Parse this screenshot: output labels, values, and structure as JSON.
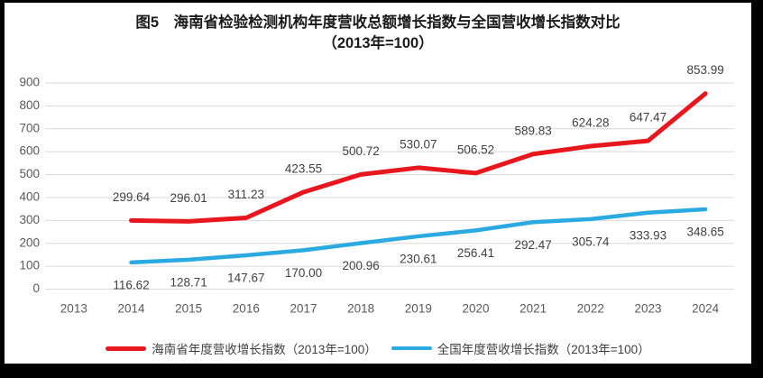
{
  "frame": {
    "background_color": "#000000",
    "panel_color": "#ffffff"
  },
  "chart_data": {
    "type": "line",
    "title": "图5　海南省检验检测机构年度营收总额增长指数与全国营收增长指数对比",
    "subtitle": "（2013年=100）",
    "categories": [
      "2013",
      "2014",
      "2015",
      "2016",
      "2017",
      "2018",
      "2019",
      "2020",
      "2021",
      "2022",
      "2023",
      "2024"
    ],
    "ylim": [
      0,
      900
    ],
    "ytick_step": 100,
    "ytick_labels": [
      "0",
      "100",
      "200",
      "300",
      "400",
      "500",
      "600",
      "700",
      "800",
      "900"
    ],
    "grid": "horizontal-only",
    "gridline_color": "#d9d9d9",
    "axis_text_color": "#595959",
    "data_label_color": "#404040",
    "legend_position": "bottom",
    "series": [
      {
        "name": "海南省年度营收增长指数（2013年=100）",
        "color": "#e8161d",
        "values": [
          null,
          299.64,
          296.01,
          311.23,
          423.55,
          500.72,
          530.07,
          506.52,
          589.83,
          624.28,
          647.47,
          853.99
        ]
      },
      {
        "name": "全国年度营收增长指数（2013年=100）",
        "color": "#2aaae1",
        "values": [
          null,
          116.62,
          128.71,
          147.67,
          170.0,
          200.96,
          230.61,
          256.41,
          292.47,
          305.74,
          333.93,
          348.65
        ]
      }
    ]
  }
}
